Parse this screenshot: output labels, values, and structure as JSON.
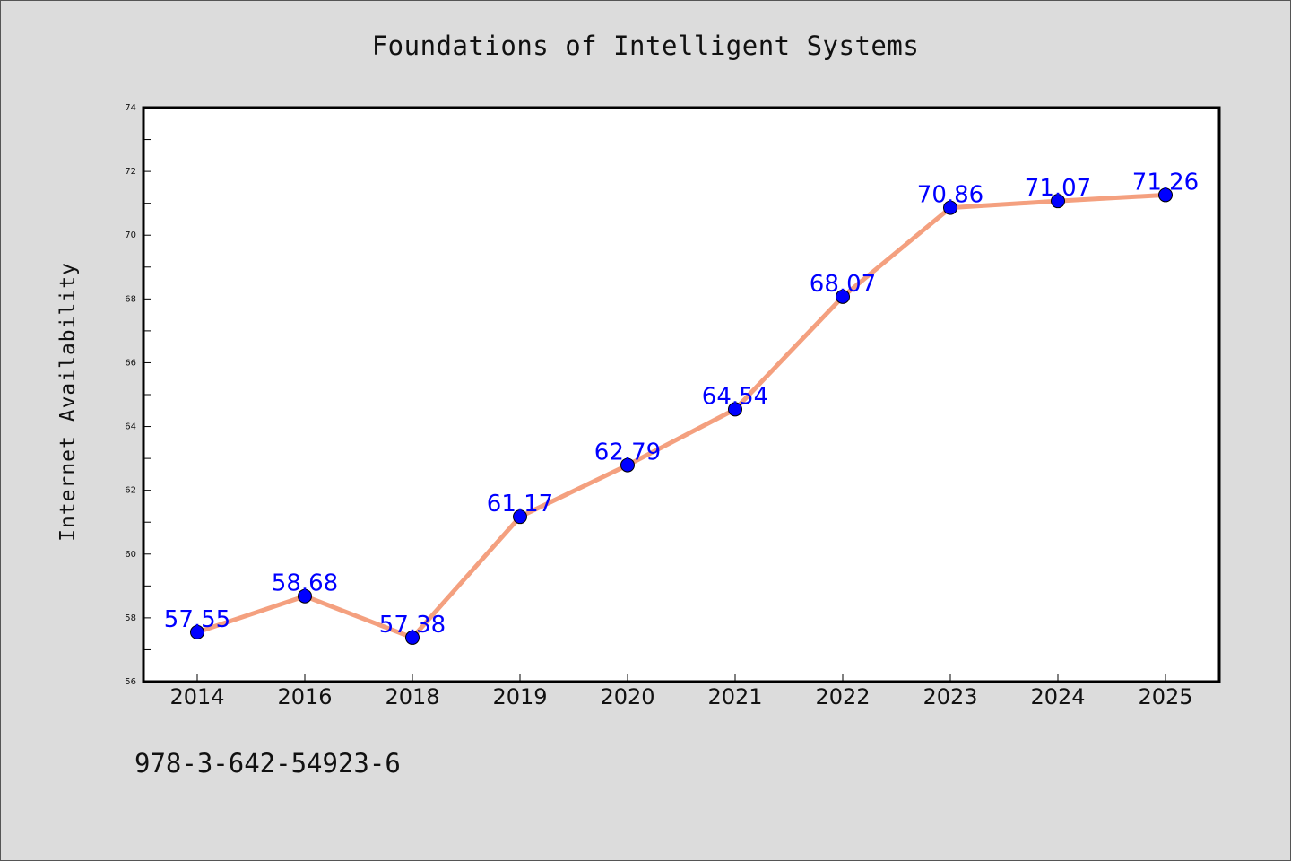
{
  "chart_data": {
    "type": "line",
    "title": "Foundations of Intelligent Systems",
    "xlabel": "",
    "ylabel": "Internet Availability",
    "categories": [
      "2014",
      "2016",
      "2018",
      "2019",
      "2020",
      "2021",
      "2022",
      "2023",
      "2024",
      "2025"
    ],
    "series": [
      {
        "values": [
          57.55,
          58.68,
          57.38,
          61.17,
          62.79,
          64.54,
          68.07,
          70.86,
          71.07,
          71.26
        ],
        "data_labels": [
          "57.55",
          "58.68",
          "57.38",
          "61.17",
          "62.79",
          "64.54",
          "68.07",
          "70.86",
          "71.07",
          "71.26"
        ],
        "line_color": "#f4a07f",
        "marker_color": "#0000ff"
      }
    ],
    "ylim": [
      56,
      74
    ],
    "yticks": [
      "56",
      "58",
      "60",
      "62",
      "64",
      "66",
      "68",
      "70",
      "72",
      "74"
    ],
    "grid": false,
    "legend": "none"
  },
  "footer": {
    "isbn": "978-3-642-54923-6"
  }
}
